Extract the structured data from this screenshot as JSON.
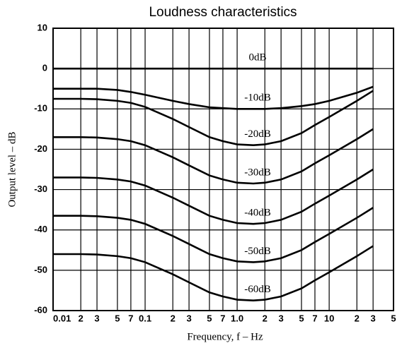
{
  "chart_data": {
    "type": "line",
    "title": "Loudness characteristics",
    "x_label": "Frequency, f – Hz",
    "y_label": "Output level – dB",
    "x": [
      0.01,
      0.02,
      0.03,
      0.05,
      0.07,
      0.1,
      0.2,
      0.3,
      0.5,
      0.7,
      1,
      1.5,
      2,
      3,
      5,
      7,
      10,
      20,
      30
    ],
    "series": [
      {
        "name": "0dB",
        "color": "#000000",
        "values": [
          0,
          0,
          0,
          0,
          0,
          0,
          0,
          0,
          0,
          0,
          0,
          0,
          0,
          0,
          0,
          0,
          0,
          0,
          0
        ]
      },
      {
        "name": "-10dB",
        "color": "#000000",
        "values": [
          -5,
          -5,
          -5,
          -5.3,
          -5.8,
          -6.5,
          -8,
          -8.8,
          -9.6,
          -9.8,
          -10,
          -10,
          -10,
          -9.8,
          -9.3,
          -8.8,
          -8,
          -6,
          -4.5
        ]
      },
      {
        "name": "-20dB",
        "color": "#000000",
        "values": [
          -7.5,
          -7.5,
          -7.6,
          -8,
          -8.5,
          -9.5,
          -12.5,
          -14.5,
          -17,
          -18,
          -18.8,
          -19,
          -18.8,
          -18,
          -16,
          -14,
          -12,
          -8,
          -5.5
        ]
      },
      {
        "name": "-30dB",
        "color": "#000000",
        "values": [
          -17,
          -17,
          -17.1,
          -17.5,
          -18,
          -19,
          -22,
          -24,
          -26.5,
          -27.5,
          -28.3,
          -28.5,
          -28.3,
          -27.5,
          -25.5,
          -23.5,
          -21.5,
          -17.5,
          -15
        ]
      },
      {
        "name": "-40dB",
        "color": "#000000",
        "values": [
          -27,
          -27,
          -27.1,
          -27.5,
          -28,
          -29,
          -32,
          -34,
          -36.5,
          -37.5,
          -38.3,
          -38.5,
          -38.3,
          -37.5,
          -35.5,
          -33.5,
          -31.5,
          -27.5,
          -25
        ]
      },
      {
        "name": "-50dB",
        "color": "#000000",
        "values": [
          -36.5,
          -36.5,
          -36.6,
          -37,
          -37.5,
          -38.5,
          -41.5,
          -43.5,
          -46,
          -47,
          -47.8,
          -48,
          -47.8,
          -47,
          -45,
          -43,
          -41,
          -37,
          -34.5
        ]
      },
      {
        "name": "-60dB",
        "color": "#000000",
        "values": [
          -46,
          -46,
          -46.1,
          -46.5,
          -47,
          -48,
          -51,
          -53,
          -55.5,
          -56.5,
          -57.3,
          -57.5,
          -57.3,
          -56.5,
          -54.5,
          -52.5,
          -50.5,
          -46.5,
          -44
        ]
      }
    ],
    "xscale": "log",
    "xlim": [
      0.01,
      50
    ],
    "xticks": [
      0.01,
      {
        "value": 0.02,
        "label": "2"
      },
      {
        "value": 0.03,
        "label": "3"
      },
      {
        "value": 0.05,
        "label": "5"
      },
      {
        "value": 0.07,
        "label": "7"
      },
      0.1,
      {
        "value": 0.2,
        "label": "2"
      },
      {
        "value": 0.3,
        "label": "3"
      },
      {
        "value": 0.5,
        "label": "5"
      },
      {
        "value": 0.7,
        "label": "7"
      },
      {
        "value": 1,
        "label": "1.0"
      },
      {
        "value": 2,
        "label": "2"
      },
      {
        "value": 3,
        "label": "3"
      },
      {
        "value": 5,
        "label": "5"
      },
      {
        "value": 7,
        "label": "7"
      },
      10,
      {
        "value": 20,
        "label": "2"
      },
      {
        "value": 30,
        "label": "3"
      },
      {
        "value": 50,
        "label": "5"
      }
    ],
    "ylim": [
      -60,
      10
    ],
    "yticks": [
      -60,
      -50,
      -40,
      -30,
      -20,
      -10,
      0,
      10
    ],
    "grid": true
  }
}
